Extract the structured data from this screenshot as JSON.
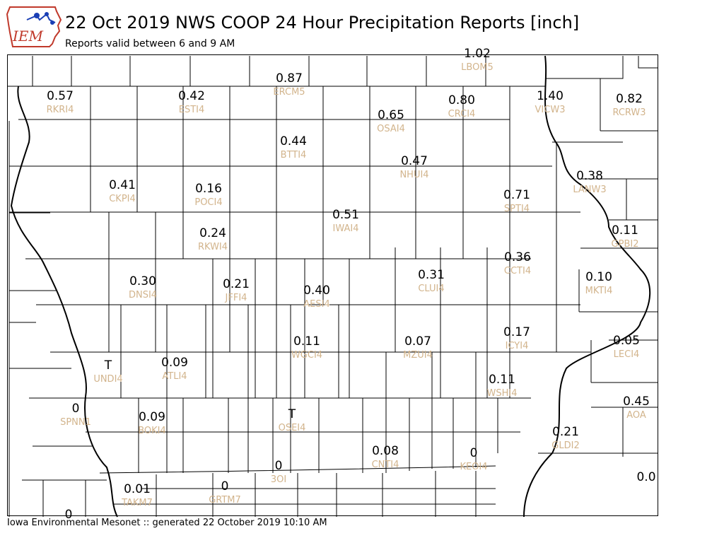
{
  "logo": {
    "text": "IEM"
  },
  "title": "22 Oct 2019 NWS COOP 24 Hour Precipitation Reports [inch]",
  "subtitle": "Reports valid between 6 and 9 AM",
  "footer": "Iowa Environmental Mesonet :: generated 22 October 2019 10:10 AM",
  "colors": {
    "value_text": "#000000",
    "station_text": "#d2b48c",
    "county_lines": "#000000",
    "logo_red": "#c0392b",
    "logo_blue": "#1a3fb5"
  },
  "stations": [
    {
      "id": "LBOM5",
      "value": "1.02"
    },
    {
      "id": "ERCM5",
      "value": "0.87"
    },
    {
      "id": "RKRI4",
      "value": "0.57"
    },
    {
      "id": "ESTI4",
      "value": "0.42"
    },
    {
      "id": "OSAI4",
      "value": "0.65"
    },
    {
      "id": "CRCI4",
      "value": "0.80"
    },
    {
      "id": "VICW3",
      "value": "1.40"
    },
    {
      "id": "RCRW3",
      "value": "0.82"
    },
    {
      "id": "BTTI4",
      "value": "0.44"
    },
    {
      "id": "NHUI4",
      "value": "0.47"
    },
    {
      "id": "LANW3",
      "value": "0.38"
    },
    {
      "id": "CKPI4",
      "value": "0.41"
    },
    {
      "id": "POCI4",
      "value": "0.16"
    },
    {
      "id": "SPTI4",
      "value": "0.71"
    },
    {
      "id": "IWAI4",
      "value": "0.51"
    },
    {
      "id": "RKWI4",
      "value": "0.24"
    },
    {
      "id": "GPBI2",
      "value": "0.11"
    },
    {
      "id": "CCTI4",
      "value": "0.36"
    },
    {
      "id": "CLUI4",
      "value": "0.31"
    },
    {
      "id": "DNSI4",
      "value": "0.30"
    },
    {
      "id": "MKTI4",
      "value": "0.10"
    },
    {
      "id": "JFFI4",
      "value": "0.21"
    },
    {
      "id": "AESI4",
      "value": "0.40"
    },
    {
      "id": "ICYI4",
      "value": "0.17"
    },
    {
      "id": "WGCI4",
      "value": "0.11"
    },
    {
      "id": "MZUI4",
      "value": "0.07"
    },
    {
      "id": "LECI4",
      "value": "0.05"
    },
    {
      "id": "UNDI4",
      "value": "T"
    },
    {
      "id": "ATLI4",
      "value": "0.09"
    },
    {
      "id": "WSHI4",
      "value": "0.11"
    },
    {
      "id": "AOA",
      "value": "0.45"
    },
    {
      "id": "SPNN1",
      "value": "0"
    },
    {
      "id": "BOKI4",
      "value": "0.09"
    },
    {
      "id": "OSEI4",
      "value": "T"
    },
    {
      "id": "GLDI2",
      "value": "0.21"
    },
    {
      "id": "CNTI4",
      "value": "0.08"
    },
    {
      "id": "KEOI4",
      "value": "0"
    },
    {
      "id": "3OI",
      "value": "0"
    },
    {
      "id": "",
      "value": "0.0"
    },
    {
      "id": "TAKM7",
      "value": "0.01"
    },
    {
      "id": "GRTM7",
      "value": "0"
    },
    {
      "id": "",
      "value": "0"
    }
  ]
}
